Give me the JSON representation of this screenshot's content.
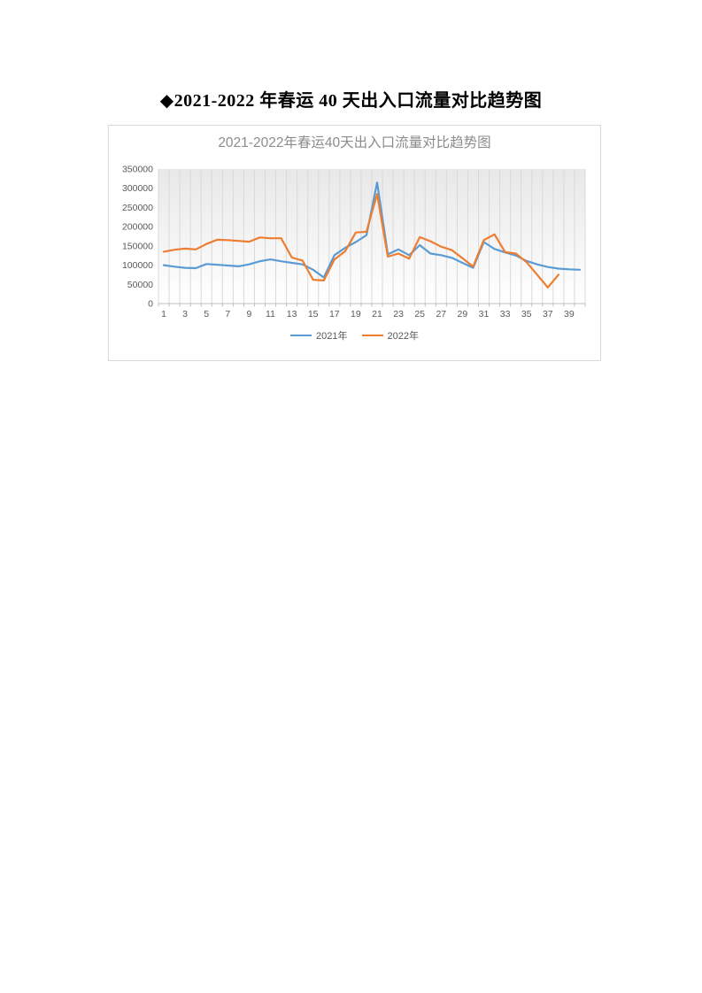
{
  "page": {
    "title": "◆2021-2022 年春运 40 天出入口流量对比趋势图"
  },
  "chart_data": {
    "type": "line",
    "title": "2021-2022年春运40天出入口流量对比趋势图",
    "title_color": "#8c8c8c",
    "axis_label_color": "#595959",
    "grid": "vertical-category-gridlines",
    "plot_background": "gradient-gray-to-white",
    "legend_position": "bottom",
    "xlabel": "",
    "ylabel": "",
    "ylim": [
      0,
      350000
    ],
    "y_ticks": [
      0,
      50000,
      100000,
      150000,
      200000,
      250000,
      300000,
      350000
    ],
    "x_categories": [
      1,
      2,
      3,
      4,
      5,
      6,
      7,
      8,
      9,
      10,
      11,
      12,
      13,
      14,
      15,
      16,
      17,
      18,
      19,
      20,
      21,
      22,
      23,
      24,
      25,
      26,
      27,
      28,
      29,
      30,
      31,
      32,
      33,
      34,
      35,
      36,
      37,
      38,
      39,
      40
    ],
    "x_tick_labels": [
      1,
      3,
      5,
      7,
      9,
      11,
      13,
      15,
      17,
      19,
      21,
      23,
      25,
      27,
      29,
      31,
      33,
      35,
      37,
      39
    ],
    "series": [
      {
        "name": "2021年",
        "color": "#5B9BD5",
        "values": [
          100000,
          96000,
          93000,
          92000,
          103000,
          101000,
          99000,
          97000,
          102000,
          110000,
          115000,
          110000,
          106000,
          102000,
          88000,
          68000,
          126000,
          145000,
          160000,
          178000,
          315000,
          128000,
          141000,
          126000,
          152000,
          130000,
          126000,
          119000,
          106000,
          93000,
          160000,
          142000,
          133000,
          125000,
          111000,
          102000,
          95000,
          91000,
          89000,
          88000
        ]
      },
      {
        "name": "2022年",
        "color": "#ED7D31",
        "values": [
          135000,
          140000,
          143000,
          141000,
          155000,
          166000,
          165000,
          163000,
          161000,
          172000,
          170000,
          170000,
          120000,
          112000,
          62000,
          60000,
          115000,
          136000,
          185000,
          187000,
          285000,
          122000,
          130000,
          117000,
          173000,
          162000,
          148000,
          139000,
          118000,
          96000,
          165000,
          180000,
          134000,
          130000,
          108000,
          75000,
          42000,
          75000,
          null,
          null
        ]
      }
    ]
  }
}
